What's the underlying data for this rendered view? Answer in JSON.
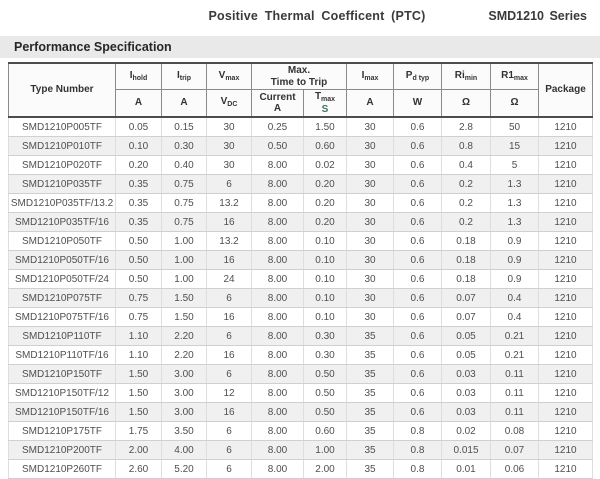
{
  "page": {
    "title": "Positive Thermal Coefficent (PTC)",
    "series": "SMD1210 Series",
    "section_title": "Performance Specification"
  },
  "colors": {
    "stripe": "#f0f0f0",
    "band": "#e9e9e9",
    "header_rule": "#4d4d4d",
    "tmax_s_accent": "#3f7265"
  },
  "table": {
    "columns": {
      "type_number": "Type Number",
      "ihold": {
        "main": "I",
        "sub": "hold",
        "unit": "A"
      },
      "itrip": {
        "main": "I",
        "sub": "trip",
        "unit": "A"
      },
      "vmax": {
        "main": "V",
        "sub": "max",
        "unit_main": "V",
        "unit_sub": "DC"
      },
      "trip_group": {
        "line1": "Max.",
        "line2": "Time to Trip"
      },
      "current": {
        "line1": "Current",
        "line2": "A"
      },
      "tmax": {
        "main": "T",
        "sub": "max",
        "unit": "S"
      },
      "imax": {
        "main": "I",
        "sub": "max",
        "unit": "A"
      },
      "pd": {
        "main": "P",
        "sub": "d typ",
        "unit": "W"
      },
      "rimin": {
        "main": "Ri",
        "sub": "min",
        "unit": "Ω"
      },
      "r1max": {
        "main": "R1",
        "sub": "max",
        "unit": "Ω"
      },
      "package": "Package"
    },
    "rows": [
      [
        "SMD1210P005TF",
        "0.05",
        "0.15",
        "30",
        "0.25",
        "1.50",
        "30",
        "0.6",
        "2.8",
        "50",
        "1210"
      ],
      [
        "SMD1210P010TF",
        "0.10",
        "0.30",
        "30",
        "0.50",
        "0.60",
        "30",
        "0.6",
        "0.8",
        "15",
        "1210"
      ],
      [
        "SMD1210P020TF",
        "0.20",
        "0.40",
        "30",
        "8.00",
        "0.02",
        "30",
        "0.6",
        "0.4",
        "5",
        "1210"
      ],
      [
        "SMD1210P035TF",
        "0.35",
        "0.75",
        "6",
        "8.00",
        "0.20",
        "30",
        "0.6",
        "0.2",
        "1.3",
        "1210"
      ],
      [
        "SMD1210P035TF/13.2",
        "0.35",
        "0.75",
        "13.2",
        "8.00",
        "0.20",
        "30",
        "0.6",
        "0.2",
        "1.3",
        "1210"
      ],
      [
        "SMD1210P035TF/16",
        "0.35",
        "0.75",
        "16",
        "8.00",
        "0.20",
        "30",
        "0.6",
        "0.2",
        "1.3",
        "1210"
      ],
      [
        "SMD1210P050TF",
        "0.50",
        "1.00",
        "13.2",
        "8.00",
        "0.10",
        "30",
        "0.6",
        "0.18",
        "0.9",
        "1210"
      ],
      [
        "SMD1210P050TF/16",
        "0.50",
        "1.00",
        "16",
        "8.00",
        "0.10",
        "30",
        "0.6",
        "0.18",
        "0.9",
        "1210"
      ],
      [
        "SMD1210P050TF/24",
        "0.50",
        "1.00",
        "24",
        "8.00",
        "0.10",
        "30",
        "0.6",
        "0.18",
        "0.9",
        "1210"
      ],
      [
        "SMD1210P075TF",
        "0.75",
        "1.50",
        "6",
        "8.00",
        "0.10",
        "30",
        "0.6",
        "0.07",
        "0.4",
        "1210"
      ],
      [
        "SMD1210P075TF/16",
        "0.75",
        "1.50",
        "16",
        "8.00",
        "0.10",
        "30",
        "0.6",
        "0.07",
        "0.4",
        "1210"
      ],
      [
        "SMD1210P110TF",
        "1.10",
        "2.20",
        "6",
        "8.00",
        "0.30",
        "35",
        "0.6",
        "0.05",
        "0.21",
        "1210"
      ],
      [
        "SMD1210P110TF/16",
        "1.10",
        "2.20",
        "16",
        "8.00",
        "0.30",
        "35",
        "0.6",
        "0.05",
        "0.21",
        "1210"
      ],
      [
        "SMD1210P150TF",
        "1.50",
        "3.00",
        "6",
        "8.00",
        "0.50",
        "35",
        "0.6",
        "0.03",
        "0.11",
        "1210"
      ],
      [
        "SMD1210P150TF/12",
        "1.50",
        "3.00",
        "12",
        "8.00",
        "0.50",
        "35",
        "0.6",
        "0.03",
        "0.11",
        "1210"
      ],
      [
        "SMD1210P150TF/16",
        "1.50",
        "3.00",
        "16",
        "8.00",
        "0.50",
        "35",
        "0.6",
        "0.03",
        "0.11",
        "1210"
      ],
      [
        "SMD1210P175TF",
        "1.75",
        "3.50",
        "6",
        "8.00",
        "0.60",
        "35",
        "0.8",
        "0.02",
        "0.08",
        "1210"
      ],
      [
        "SMD1210P200TF",
        "2.00",
        "4.00",
        "6",
        "8.00",
        "1.00",
        "35",
        "0.8",
        "0.015",
        "0.07",
        "1210"
      ],
      [
        "SMD1210P260TF",
        "2.60",
        "5.20",
        "6",
        "8.00",
        "2.00",
        "35",
        "0.8",
        "0.01",
        "0.06",
        "1210"
      ]
    ]
  }
}
